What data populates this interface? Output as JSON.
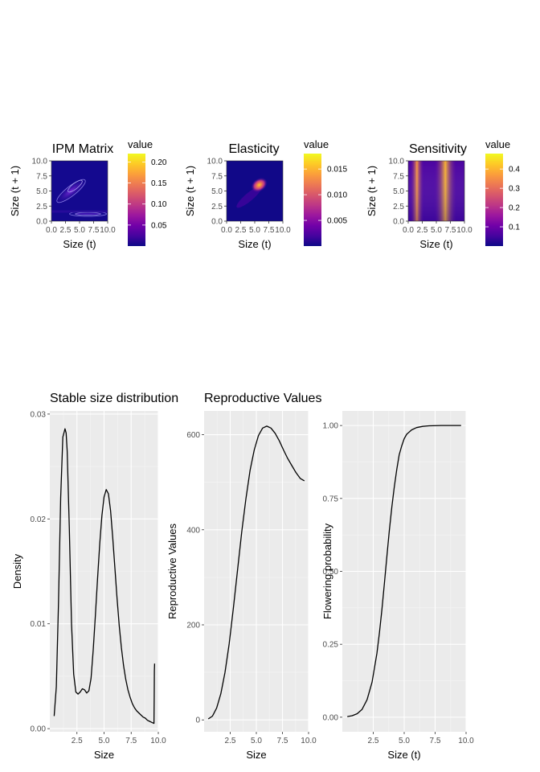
{
  "colors": {
    "panel_bg": "#ebebeb",
    "grid_major": "#ffffff",
    "line": "#000000",
    "plasma": [
      "#0d0887",
      "#46039f",
      "#7201a8",
      "#9c179e",
      "#bd3786",
      "#d8576b",
      "#ed7953",
      "#fb9f3a",
      "#fdca26",
      "#f0f921"
    ]
  },
  "chart_data": [
    {
      "type": "heatmap",
      "title": "IPM Matrix",
      "xlabel": "Size (t)",
      "ylabel": "Size (t + 1)",
      "xlim": [
        0,
        10
      ],
      "ylim": [
        0,
        10
      ],
      "x_ticks": [
        "0.0",
        "2.5",
        "5.0",
        "7.5",
        "10.0"
      ],
      "y_ticks": [
        "0.0",
        "2.5",
        "5.0",
        "7.5",
        "10.0"
      ],
      "legend_title": "value",
      "legend_ticks": [
        "0.05",
        "0.10",
        "0.15",
        "0.20"
      ],
      "legend_values": [
        0.05,
        0.1,
        0.15,
        0.2
      ],
      "legend_range": [
        0.0,
        0.22
      ],
      "legend_placement": "right"
    },
    {
      "type": "heatmap",
      "title": "Elasticity",
      "xlabel": "Size (t)",
      "ylabel": "Size (t + 1)",
      "xlim": [
        0,
        10
      ],
      "ylim": [
        0,
        10
      ],
      "x_ticks": [
        "0.0",
        "2.5",
        "5.0",
        "7.5",
        "10.0"
      ],
      "y_ticks": [
        "0.0",
        "2.5",
        "5.0",
        "7.5",
        "10.0"
      ],
      "legend_title": "value",
      "legend_ticks": [
        "0.005",
        "0.010",
        "0.015"
      ],
      "legend_values": [
        0.005,
        0.01,
        0.015
      ],
      "legend_range": [
        0.0,
        0.018
      ],
      "legend_placement": "right"
    },
    {
      "type": "heatmap",
      "title": "Sensitivity",
      "xlabel": "Size (t)",
      "ylabel": "Size (t + 1)",
      "xlim": [
        0,
        10
      ],
      "ylim": [
        0,
        10
      ],
      "x_ticks": [
        "0.0",
        "2.5",
        "5.0",
        "7.5",
        "10.0"
      ],
      "y_ticks": [
        "0.0",
        "2.5",
        "5.0",
        "7.5",
        "10.0"
      ],
      "legend_title": "value",
      "legend_ticks": [
        "0.1",
        "0.2",
        "0.3",
        "0.4"
      ],
      "legend_values": [
        0.1,
        0.2,
        0.3,
        0.4
      ],
      "legend_range": [
        0.0,
        0.48
      ],
      "legend_placement": "right"
    },
    {
      "type": "line",
      "title": "Stable size distribution",
      "xlabel": "Size",
      "ylabel": "Density",
      "xlim": [
        0,
        10
      ],
      "ylim": [
        -0.0003,
        0.0303
      ],
      "x_ticks": [
        2.5,
        5.0,
        7.5,
        10.0
      ],
      "x_tick_labels": [
        "2.5",
        "5.0",
        "7.5",
        "10.0"
      ],
      "y_ticks": [
        0.0,
        0.01,
        0.02,
        0.03
      ],
      "y_tick_labels": [
        "0.00",
        "0.01",
        "0.02",
        "0.03"
      ],
      "x": [
        0.4,
        0.6,
        0.8,
        1.0,
        1.2,
        1.4,
        1.5,
        1.6,
        1.8,
        2.0,
        2.2,
        2.4,
        2.6,
        2.8,
        3.0,
        3.2,
        3.4,
        3.6,
        3.8,
        4.0,
        4.2,
        4.4,
        4.6,
        4.8,
        5.0,
        5.2,
        5.4,
        5.6,
        5.8,
        6.0,
        6.2,
        6.4,
        6.6,
        6.8,
        7.0,
        7.2,
        7.4,
        7.6,
        7.8,
        8.0,
        8.2,
        8.4,
        8.6,
        8.8,
        9.0,
        9.2,
        9.4,
        9.6,
        9.62,
        9.64,
        9.66
      ],
      "y": [
        0.0012,
        0.004,
        0.012,
        0.022,
        0.0278,
        0.0286,
        0.0282,
        0.0265,
        0.019,
        0.01,
        0.0052,
        0.0035,
        0.0033,
        0.0035,
        0.0038,
        0.0037,
        0.0034,
        0.0036,
        0.0048,
        0.0075,
        0.0108,
        0.0143,
        0.0176,
        0.0203,
        0.0221,
        0.0228,
        0.0224,
        0.0208,
        0.0182,
        0.0153,
        0.0124,
        0.0098,
        0.0077,
        0.006,
        0.0047,
        0.0037,
        0.003,
        0.0024,
        0.002,
        0.0017,
        0.0015,
        0.0013,
        0.0011,
        0.001,
        0.0008,
        0.0007,
        0.0006,
        0.0005,
        0.003,
        0.0055,
        0.0062
      ]
    },
    {
      "type": "line",
      "title": "Reproductive Values",
      "xlabel": "Size",
      "ylabel": "Reproductive Values",
      "xlim": [
        0,
        10
      ],
      "ylim": [
        -25,
        650
      ],
      "x_ticks": [
        2.5,
        5.0,
        7.5,
        10.0
      ],
      "x_tick_labels": [
        "2.5",
        "5.0",
        "7.5",
        "10.0"
      ],
      "y_ticks": [
        0,
        200,
        400,
        600
      ],
      "y_tick_labels": [
        "0",
        "200",
        "400",
        "600"
      ],
      "x": [
        0.4,
        0.8,
        1.2,
        1.6,
        2.0,
        2.4,
        2.8,
        3.2,
        3.6,
        4.0,
        4.4,
        4.8,
        5.2,
        5.6,
        6.0,
        6.4,
        6.8,
        7.2,
        7.6,
        8.0,
        8.4,
        8.8,
        9.2,
        9.6
      ],
      "y": [
        2,
        8,
        25,
        55,
        100,
        160,
        235,
        315,
        395,
        465,
        525,
        568,
        598,
        614,
        618,
        614,
        603,
        587,
        568,
        550,
        535,
        520,
        508,
        503
      ]
    },
    {
      "type": "line",
      "title": "",
      "xlabel": "Size (t)",
      "ylabel": "Flowering probability",
      "xlim": [
        0,
        10
      ],
      "ylim": [
        -0.05,
        1.05
      ],
      "x_ticks": [
        2.5,
        5.0,
        7.5,
        10.0
      ],
      "x_tick_labels": [
        "2.5",
        "5.0",
        "7.5",
        "10.0"
      ],
      "y_ticks": [
        0.0,
        0.25,
        0.5,
        0.75,
        1.0
      ],
      "y_tick_labels": [
        "0.00",
        "0.25",
        "0.50",
        "0.75",
        "1.00"
      ],
      "x": [
        0.4,
        0.8,
        1.2,
        1.6,
        2.0,
        2.4,
        2.8,
        3.0,
        3.2,
        3.4,
        3.6,
        3.8,
        4.0,
        4.2,
        4.4,
        4.6,
        4.8,
        5.0,
        5.2,
        5.6,
        6.0,
        6.5,
        7.0,
        8.0,
        9.0,
        9.6
      ],
      "y": [
        0.002,
        0.005,
        0.012,
        0.027,
        0.06,
        0.12,
        0.22,
        0.29,
        0.37,
        0.46,
        0.55,
        0.64,
        0.72,
        0.79,
        0.85,
        0.9,
        0.93,
        0.955,
        0.97,
        0.985,
        0.993,
        0.997,
        0.999,
        1.0,
        1.0,
        1.0
      ]
    }
  ]
}
